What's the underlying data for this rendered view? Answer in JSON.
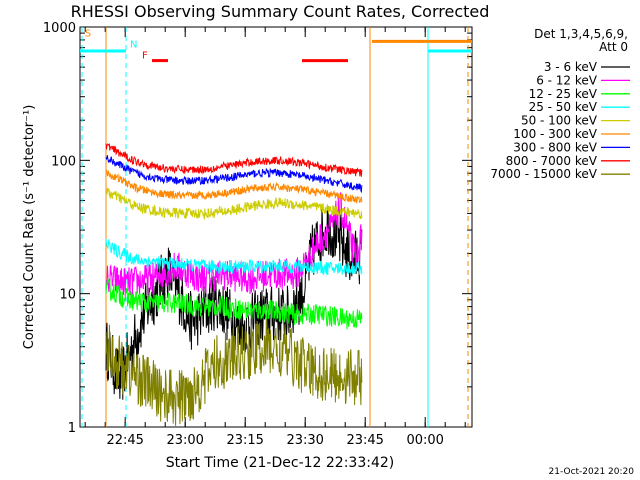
{
  "chart_data": {
    "type": "line",
    "title": "RHESSI Observing Summary Count Rates, Corrected",
    "xlabel": "Start Time (21-Dec-12 22:33:42)",
    "ylabel": "Corrected Count Rate (s⁻¹ detector⁻¹)",
    "yscale": "log",
    "ylim": [
      1,
      1000
    ],
    "xlim_minutes": [
      0,
      98
    ],
    "x_tick_labels": [
      "22:45",
      "23:00",
      "23:15",
      "23:30",
      "23:45",
      "00:00"
    ],
    "x_tick_minutes": [
      11.3,
      26.3,
      41.3,
      56.3,
      71.3,
      86.3
    ],
    "y_tick_labels": [
      "1",
      "10",
      "100",
      "1000"
    ],
    "y_tick_values": [
      1,
      10,
      100,
      1000
    ],
    "legend_header": "Det 1,3,4,5,6,9,",
    "legend_att": "Att 0",
    "legend_position": "right",
    "timestamp": "21-Oct-2021 20:20",
    "series": [
      {
        "name": "3 - 6 keV",
        "color": "#000000",
        "t": [
          6.5,
          10,
          16,
          22,
          28,
          34,
          40,
          46,
          52,
          56,
          58,
          60,
          62,
          64,
          66,
          68,
          70.5
        ],
        "y": [
          4,
          2.2,
          7,
          15,
          6,
          9,
          5.5,
          7,
          7,
          11,
          20,
          27,
          33,
          27,
          22,
          18,
          20
        ]
      },
      {
        "name": "6 - 12 keV",
        "color": "#ff00ff",
        "t": [
          6.5,
          12,
          18,
          24,
          30,
          36,
          42,
          48,
          54,
          57,
          60,
          63,
          65,
          67,
          69,
          70.5
        ],
        "y": [
          13,
          12,
          13,
          16,
          13,
          14,
          13,
          14,
          14,
          18,
          26,
          32,
          45,
          30,
          18,
          28
        ]
      },
      {
        "name": "12 - 25 keV",
        "color": "#00ff00",
        "t": [
          6.5,
          12,
          18,
          24,
          30,
          36,
          42,
          48,
          54,
          60,
          66,
          70.5
        ],
        "y": [
          11,
          9,
          8.5,
          8.5,
          8,
          8,
          7.5,
          7.5,
          7,
          7,
          6.5,
          6.5
        ]
      },
      {
        "name": "25 - 50 keV",
        "color": "#00ffff",
        "t": [
          6.5,
          9,
          14,
          20,
          26,
          32,
          40,
          48,
          56,
          62,
          66,
          70.5
        ],
        "y": [
          24,
          21,
          18,
          17,
          16.5,
          16,
          16,
          16,
          16,
          15.5,
          15.5,
          15.5
        ]
      },
      {
        "name": "50 - 100 keV",
        "color": "#cccc00",
        "t": [
          6.5,
          10,
          14,
          20,
          26,
          32,
          38,
          44,
          50,
          56,
          62,
          66,
          70.5
        ],
        "y": [
          58,
          52,
          45,
          41,
          40,
          40,
          42,
          46,
          48,
          46,
          43,
          41,
          40
        ]
      },
      {
        "name": "100 - 300 keV",
        "color": "#ff8800",
        "t": [
          6.5,
          10,
          14,
          20,
          26,
          32,
          38,
          44,
          50,
          56,
          62,
          66,
          70.5
        ],
        "y": [
          80,
          72,
          62,
          56,
          54,
          55,
          58,
          62,
          63,
          60,
          56,
          53,
          50
        ]
      },
      {
        "name": "300 - 800 keV",
        "color": "#0000ff",
        "t": [
          6.5,
          10,
          14,
          20,
          26,
          32,
          38,
          44,
          50,
          56,
          62,
          66,
          70.5
        ],
        "y": [
          105,
          92,
          80,
          72,
          70,
          71,
          75,
          80,
          81,
          76,
          70,
          66,
          62
        ]
      },
      {
        "name": "800 - 7000 keV",
        "color": "#ff0000",
        "t": [
          6.5,
          10,
          14,
          20,
          26,
          32,
          38,
          44,
          50,
          56,
          62,
          66,
          70.5
        ],
        "y": [
          130,
          112,
          98,
          88,
          85,
          86,
          92,
          98,
          100,
          95,
          88,
          84,
          80
        ]
      },
      {
        "name": "7000 - 15000 keV",
        "color": "#808000",
        "t": [
          6.5,
          10,
          16,
          20,
          24,
          28,
          34,
          40,
          46,
          52,
          58,
          64,
          70.5
        ],
        "y": [
          4,
          3,
          2.2,
          1.8,
          1.6,
          1.8,
          3,
          3.5,
          4,
          3.5,
          2.6,
          2.4,
          2.4
        ]
      }
    ],
    "markers": [
      {
        "label": "S",
        "color": "#ff8800",
        "t_start": 0,
        "t_end": 11.5,
        "level": 660,
        "text_t": 1.2,
        "text_level": 850
      },
      {
        "label": "N",
        "color": "#00ffff",
        "t_start": 0,
        "t_end": 11.5,
        "level": 660,
        "text_t": 12.5,
        "text_level": 700
      },
      {
        "label": "F",
        "color": "#ff0000",
        "t_start": 18,
        "t_end": 22,
        "level": 560,
        "text_t": 15.5,
        "text_level": 580
      },
      {
        "label": "",
        "color": "#ff0000",
        "t_start": 55.5,
        "t_end": 67,
        "level": 560,
        "text_t": 0,
        "text_level": 0
      },
      {
        "label": "",
        "color": "#ff8800",
        "t_start": 73,
        "t_end": 98,
        "level": 780,
        "text_t": 0,
        "text_level": 0
      },
      {
        "label": "",
        "color": "#00ffff",
        "t_start": 87,
        "t_end": 98,
        "level": 660,
        "text_t": 0,
        "text_level": 0
      }
    ],
    "vertical_lines": [
      {
        "t": 0.5,
        "color": "#00ffff",
        "dashed": true
      },
      {
        "t": 11.5,
        "color": "#00ffff",
        "dashed": true
      },
      {
        "t": 6.5,
        "color": "#ff8800",
        "dashed": false
      },
      {
        "t": 72.5,
        "color": "#ff8800",
        "dashed": false
      },
      {
        "t": 87,
        "color": "#00ffff",
        "dashed": false
      },
      {
        "t": 97,
        "color": "#ff8800",
        "dashed": true
      }
    ]
  }
}
